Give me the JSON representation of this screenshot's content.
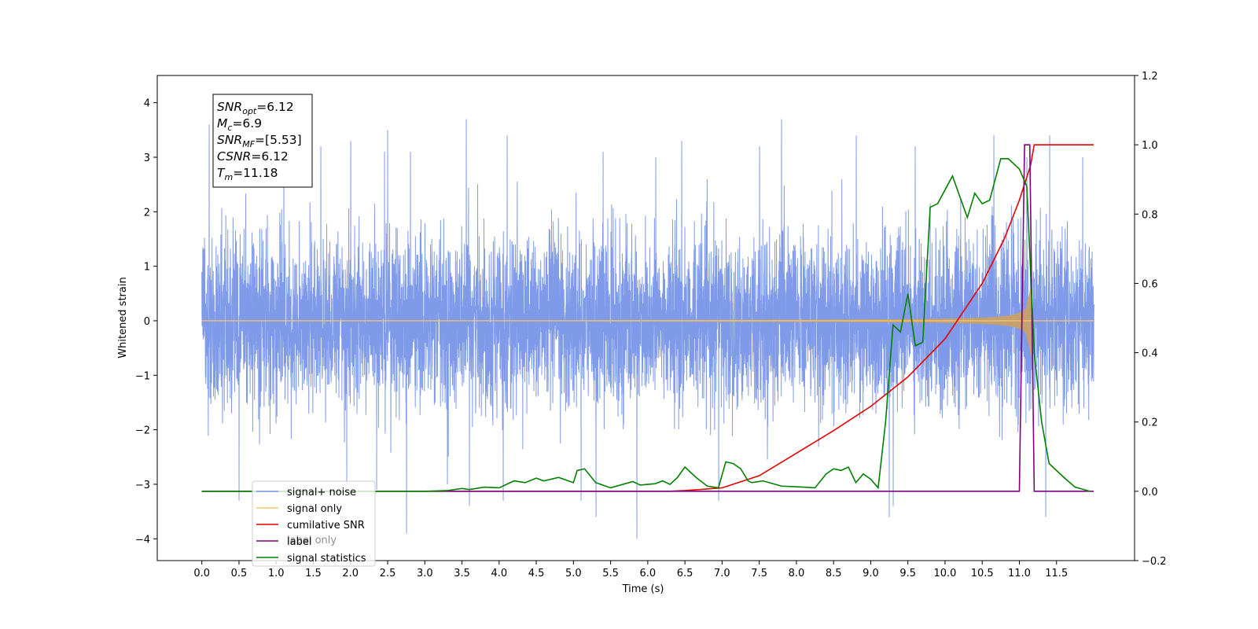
{
  "chart_data": {
    "type": "line",
    "xlabel": "Time (s)",
    "ylabel_left": "Whitened strain",
    "ylabel_right": "",
    "xlim": [
      -0.6,
      12.55
    ],
    "ylim_left": [
      -4.4,
      4.5
    ],
    "ylim_right": [
      -0.2,
      1.2
    ],
    "x_ticks": [
      "0.0",
      "0.5",
      "1.0",
      "1.5",
      "2.0",
      "2.5",
      "3.0",
      "3.5",
      "4.0",
      "4.5",
      "5.0",
      "5.5",
      "6.0",
      "6.5",
      "7.0",
      "7.5",
      "8.0",
      "8.5",
      "9.0",
      "9.5",
      "10.0",
      "10.5",
      "11.0",
      "11.5"
    ],
    "y_ticks_left": [
      "4",
      "3",
      "2",
      "1",
      "0",
      "−1",
      "−2",
      "−3",
      "−4"
    ],
    "y_ticks_right": [
      "1.2",
      "1.0",
      "0.8",
      "0.6",
      "0.4",
      "0.2",
      "0.0",
      "−0.2"
    ],
    "grid": false,
    "legend_position": "lower-left",
    "annotation": {
      "lines": [
        {
          "sym": "SNR",
          "sub": "opt",
          "value": "=6.12"
        },
        {
          "sym": "M",
          "sub": "c",
          "value": "=6.9"
        },
        {
          "sym": "SNR",
          "sub": "MF",
          "value": "=[5.53]"
        },
        {
          "sym": "CSNR",
          "sub": "",
          "value": "=6.12"
        },
        {
          "sym": "T",
          "sub": "m",
          "value": "=11.18"
        }
      ]
    },
    "series": [
      {
        "name": "signal+ noise",
        "color": "#7895e8",
        "axis": "left",
        "kind": "noise",
        "x_range": [
          0.0,
          12.0
        ],
        "noise_std": 0.75,
        "spikes": [
          [
            0.1,
            3.6
          ],
          [
            0.5,
            -3.3
          ],
          [
            1.1,
            3.5
          ],
          [
            1.6,
            3.2
          ],
          [
            1.95,
            -3.0
          ],
          [
            2.0,
            3.3
          ],
          [
            2.35,
            -3.1
          ],
          [
            2.45,
            3.1
          ],
          [
            2.5,
            3.5
          ],
          [
            2.75,
            -3.9
          ],
          [
            2.8,
            3.1
          ],
          [
            3.3,
            -3.0
          ],
          [
            3.55,
            3.7
          ],
          [
            3.6,
            -3.4
          ],
          [
            4.05,
            -3.3
          ],
          [
            4.1,
            3.4
          ],
          [
            5.1,
            -3.3
          ],
          [
            5.3,
            -3.6
          ],
          [
            5.4,
            3.1
          ],
          [
            5.85,
            -4.0
          ],
          [
            6.1,
            3.0
          ],
          [
            6.45,
            3.3
          ],
          [
            6.95,
            -3.3
          ],
          [
            7.5,
            3.2
          ],
          [
            7.8,
            3.7
          ],
          [
            8.8,
            3.4
          ],
          [
            9.25,
            -3.6
          ],
          [
            9.3,
            -3.4
          ],
          [
            9.6,
            3.2
          ],
          [
            10.65,
            3.4
          ],
          [
            11.1,
            3.0
          ],
          [
            11.35,
            -3.6
          ],
          [
            11.4,
            3.4
          ],
          [
            11.85,
            3.0
          ]
        ]
      },
      {
        "name": "signal only",
        "color": "#f5c76b",
        "axis": "left",
        "kind": "chirp",
        "x_range": [
          0.0,
          12.0
        ],
        "merger_time": 11.18,
        "peak_amplitude": 0.5
      },
      {
        "name": "cumilative SNR",
        "color": "#e60000",
        "axis": "right",
        "points": [
          [
            0,
            0
          ],
          [
            6.3,
            0
          ],
          [
            6.5,
            0.002
          ],
          [
            7.0,
            0.01
          ],
          [
            7.5,
            0.045
          ],
          [
            8.0,
            0.11
          ],
          [
            8.5,
            0.175
          ],
          [
            9.0,
            0.245
          ],
          [
            9.5,
            0.33
          ],
          [
            10.0,
            0.44
          ],
          [
            10.5,
            0.6
          ],
          [
            10.8,
            0.73
          ],
          [
            11.0,
            0.84
          ],
          [
            11.15,
            0.94
          ],
          [
            11.2,
            1.0
          ],
          [
            12.0,
            1.0
          ]
        ]
      },
      {
        "name": "label",
        "color": "#800080",
        "axis": "right",
        "points": [
          [
            0,
            0
          ],
          [
            11.0,
            0
          ],
          [
            11.07,
            1.0
          ],
          [
            11.14,
            1.0
          ],
          [
            11.2,
            0
          ],
          [
            12.0,
            0
          ]
        ]
      },
      {
        "name": "signal statistics",
        "color": "#008000",
        "axis": "right",
        "points": [
          [
            0,
            0
          ],
          [
            3.0,
            0
          ],
          [
            3.3,
            0.002
          ],
          [
            3.5,
            0.008
          ],
          [
            3.6,
            0.005
          ],
          [
            3.8,
            0.012
          ],
          [
            4.0,
            0.01
          ],
          [
            4.2,
            0.03
          ],
          [
            4.35,
            0.025
          ],
          [
            4.5,
            0.038
          ],
          [
            4.6,
            0.03
          ],
          [
            4.8,
            0.04
          ],
          [
            5.0,
            0.025
          ],
          [
            5.05,
            0.06
          ],
          [
            5.15,
            0.065
          ],
          [
            5.3,
            0.025
          ],
          [
            5.5,
            0.01
          ],
          [
            5.8,
            0.028
          ],
          [
            5.9,
            0.018
          ],
          [
            6.1,
            0.022
          ],
          [
            6.2,
            0.03
          ],
          [
            6.3,
            0.02
          ],
          [
            6.4,
            0.04
          ],
          [
            6.5,
            0.07
          ],
          [
            6.65,
            0.04
          ],
          [
            6.8,
            0.015
          ],
          [
            6.95,
            0.01
          ],
          [
            7.05,
            0.085
          ],
          [
            7.15,
            0.08
          ],
          [
            7.25,
            0.065
          ],
          [
            7.35,
            0.03
          ],
          [
            7.4,
            0.025
          ],
          [
            7.55,
            0.03
          ],
          [
            7.8,
            0.015
          ],
          [
            8.1,
            0.012
          ],
          [
            8.25,
            0.01
          ],
          [
            8.4,
            0.05
          ],
          [
            8.5,
            0.065
          ],
          [
            8.6,
            0.06
          ],
          [
            8.7,
            0.07
          ],
          [
            8.8,
            0.025
          ],
          [
            8.9,
            0.05
          ],
          [
            9.0,
            0.035
          ],
          [
            9.1,
            0.01
          ],
          [
            9.2,
            0.2
          ],
          [
            9.3,
            0.48
          ],
          [
            9.4,
            0.46
          ],
          [
            9.5,
            0.57
          ],
          [
            9.6,
            0.42
          ],
          [
            9.7,
            0.43
          ],
          [
            9.8,
            0.82
          ],
          [
            9.9,
            0.83
          ],
          [
            10.0,
            0.87
          ],
          [
            10.1,
            0.91
          ],
          [
            10.2,
            0.85
          ],
          [
            10.3,
            0.79
          ],
          [
            10.4,
            0.86
          ],
          [
            10.5,
            0.83
          ],
          [
            10.6,
            0.84
          ],
          [
            10.75,
            0.96
          ],
          [
            10.85,
            0.96
          ],
          [
            11.0,
            0.93
          ],
          [
            11.1,
            0.88
          ],
          [
            11.2,
            0.4
          ],
          [
            11.3,
            0.2
          ],
          [
            11.4,
            0.08
          ],
          [
            11.6,
            0.04
          ],
          [
            11.75,
            0.012
          ],
          [
            11.95,
            0.0
          ]
        ]
      }
    ],
    "legend_entries": [
      "signal+ noise",
      "signal only",
      "cumilative SNR",
      "label",
      "signal statistics"
    ],
    "legend_ghost_text": "label only"
  }
}
